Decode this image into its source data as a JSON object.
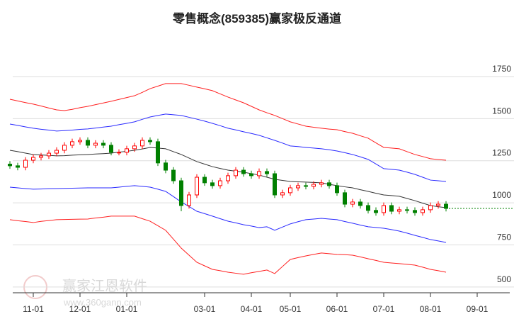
{
  "chart_data": {
    "type": "candlestick",
    "title": "零售概念(859385)赢家极反通道",
    "watermark": "赢家江恩软件",
    "watermark_url": "www.360gann.com",
    "categories": [
      null,
      null,
      null,
      "11-01",
      null,
      null,
      null,
      null,
      null,
      "12-01",
      null,
      null,
      null,
      null,
      null,
      "01-01",
      null,
      null,
      null,
      null,
      null,
      null,
      null,
      null,
      null,
      "03-01",
      null,
      null,
      null,
      null,
      null,
      "04-01",
      null,
      null,
      null,
      null,
      "05-01",
      null,
      null,
      null,
      null,
      null,
      "06-01",
      null,
      null,
      null,
      null,
      null,
      "07-01",
      null,
      null,
      null,
      null,
      null,
      "08-01",
      null,
      null,
      null,
      null,
      null,
      "09-01"
    ],
    "open": [
      1230,
      1220,
      1211,
      1253,
      1270,
      1279,
      1295,
      1312,
      1342,
      1363,
      1371,
      1342,
      1354,
      1342,
      1300,
      1300,
      1321,
      1338,
      1371,
      1363,
      1237,
      1194,
      1131,
      984,
      1047,
      1152,
      1119,
      1102,
      1131,
      1161,
      1194,
      1173,
      1161,
      1186,
      1173,
      1047,
      1060,
      1089,
      1102,
      1098,
      1110,
      1119,
      1102,
      1060,
      992,
      1005,
      984,
      955,
      942,
      984,
      950,
      959,
      955,
      942,
      959,
      984,
      992,
      null,
      null,
      null,
      null
    ],
    "high": [
      1248,
      1238,
      1271,
      1288,
      1297,
      1313,
      1330,
      1360,
      1381,
      1389,
      1389,
      1372,
      1372,
      1360,
      1318,
      1339,
      1356,
      1389,
      1389,
      1381,
      1255,
      1212,
      1149,
      1065,
      1170,
      1170,
      1137,
      1149,
      1179,
      1212,
      1212,
      1191,
      1204,
      1204,
      1191,
      1078,
      1107,
      1120,
      1120,
      1128,
      1137,
      1137,
      1120,
      1078,
      1023,
      1023,
      1002,
      973,
      1002,
      1002,
      977,
      977,
      973,
      977,
      1002,
      1010,
      1010,
      null,
      null,
      null,
      null
    ],
    "low": [
      1202,
      1193,
      1193,
      1235,
      1252,
      1261,
      1277,
      1294,
      1324,
      1345,
      1324,
      1324,
      1324,
      1282,
      1282,
      1282,
      1303,
      1320,
      1345,
      1219,
      1176,
      1113,
      950,
      966,
      1029,
      1101,
      1084,
      1084,
      1113,
      1143,
      1155,
      1143,
      1143,
      1155,
      1029,
      1029,
      1042,
      1071,
      1080,
      1080,
      1092,
      1084,
      1042,
      974,
      974,
      966,
      937,
      924,
      924,
      932,
      932,
      937,
      924,
      924,
      941,
      966,
      949,
      null,
      null,
      null,
      null
    ],
    "close": [
      1220,
      1211,
      1253,
      1270,
      1279,
      1295,
      1312,
      1342,
      1363,
      1371,
      1342,
      1354,
      1342,
      1300,
      1300,
      1321,
      1338,
      1371,
      1363,
      1237,
      1194,
      1131,
      984,
      1047,
      1152,
      1119,
      1102,
      1131,
      1161,
      1194,
      1173,
      1161,
      1186,
      1173,
      1047,
      1060,
      1089,
      1102,
      1098,
      1110,
      1119,
      1102,
      1060,
      992,
      1005,
      984,
      955,
      942,
      984,
      950,
      959,
      955,
      942,
      959,
      984,
      992,
      967,
      null,
      null,
      null,
      null
    ],
    "up_color": "#ff0000",
    "down_color": "#008000",
    "last_line_color": "#008000",
    "bands": [
      {
        "color": "#ff2020",
        "values": [
          1615,
          1605,
          1595,
          1586,
          1575,
          1563,
          1552,
          1548,
          1555,
          1565,
          1573,
          1583,
          1593,
          1603,
          1614,
          1625,
          1636,
          1656,
          1678,
          1693,
          1708,
          1708,
          1708,
          1698,
          1687,
          1677,
          1666,
          1647,
          1628,
          1611,
          1594,
          1573,
          1552,
          1535,
          1519,
          1500,
          1481,
          1468,
          1455,
          1449,
          1443,
          1438,
          1434,
          1423,
          1413,
          1398,
          1384,
          1356,
          1329,
          1325,
          1321,
          1304,
          1287,
          1275,
          1262,
          1257,
          1253,
          null,
          null,
          null,
          null
        ]
      },
      {
        "color": "#2a2aff",
        "values": [
          1468,
          1460,
          1451,
          1443,
          1437,
          1432,
          1426,
          1429,
          1432,
          1436,
          1439,
          1444,
          1450,
          1455,
          1464,
          1472,
          1481,
          1496,
          1510,
          1519,
          1527,
          1523,
          1519,
          1508,
          1497,
          1485,
          1472,
          1458,
          1443,
          1433,
          1422,
          1412,
          1401,
          1386,
          1371,
          1355,
          1338,
          1334,
          1329,
          1325,
          1321,
          1315,
          1308,
          1298,
          1287,
          1273,
          1258,
          1231,
          1203,
          1199,
          1194,
          1182,
          1169,
          1152,
          1135,
          1131,
          1127,
          null,
          null,
          null,
          null
        ]
      },
      {
        "color": "#333333",
        "values": [
          1312,
          1304,
          1295,
          1287,
          1284,
          1282,
          1279,
          1280,
          1283,
          1285,
          1287,
          1290,
          1292,
          1295,
          1301,
          1306,
          1312,
          1320,
          1329,
          1325,
          1321,
          1304,
          1287,
          1266,
          1245,
          1230,
          1215,
          1204,
          1194,
          1188,
          1182,
          1173,
          1165,
          1152,
          1140,
          1133,
          1127,
          1125,
          1123,
          1121,
          1119,
          1110,
          1102,
          1095,
          1089,
          1078,
          1068,
          1057,
          1047,
          1043,
          1039,
          1026,
          1013,
          998,
          984,
          977,
          971,
          null,
          null,
          null,
          null
        ]
      },
      {
        "color": "#2a2aff",
        "values": [
          1093,
          1089,
          1085,
          1081,
          1082,
          1084,
          1085,
          1086,
          1087,
          1088,
          1089,
          1089,
          1089,
          1089,
          1093,
          1098,
          1102,
          1098,
          1093,
          1081,
          1068,
          1037,
          1005,
          978,
          950,
          936,
          921,
          906,
          891,
          881,
          870,
          862,
          853,
          858,
          837,
          856,
          875,
          888,
          900,
          904,
          908,
          904,
          900,
          889,
          879,
          868,
          858,
          854,
          849,
          841,
          832,
          820,
          807,
          795,
          782,
          774,
          765,
          null,
          null,
          null,
          null
        ]
      },
      {
        "color": "#ff2020",
        "values": [
          900,
          894,
          889,
          883,
          890,
          895,
          900,
          901,
          902,
          903,
          904,
          910,
          915,
          921,
          921,
          921,
          921,
          906,
          891,
          864,
          837,
          784,
          731,
          689,
          647,
          626,
          605,
          597,
          588,
          582,
          576,
          585,
          593,
          601,
          580,
          622,
          664,
          675,
          685,
          694,
          702,
          698,
          694,
          692,
          689,
          679,
          668,
          658,
          647,
          643,
          639,
          635,
          630,
          618,
          605,
          597,
          588,
          null,
          null,
          null,
          null
        ]
      }
    ],
    "ylim": [
      466,
      2015
    ],
    "yticks": [
      500,
      750,
      1000,
      1250,
      1500,
      1750
    ],
    "grid": true
  }
}
